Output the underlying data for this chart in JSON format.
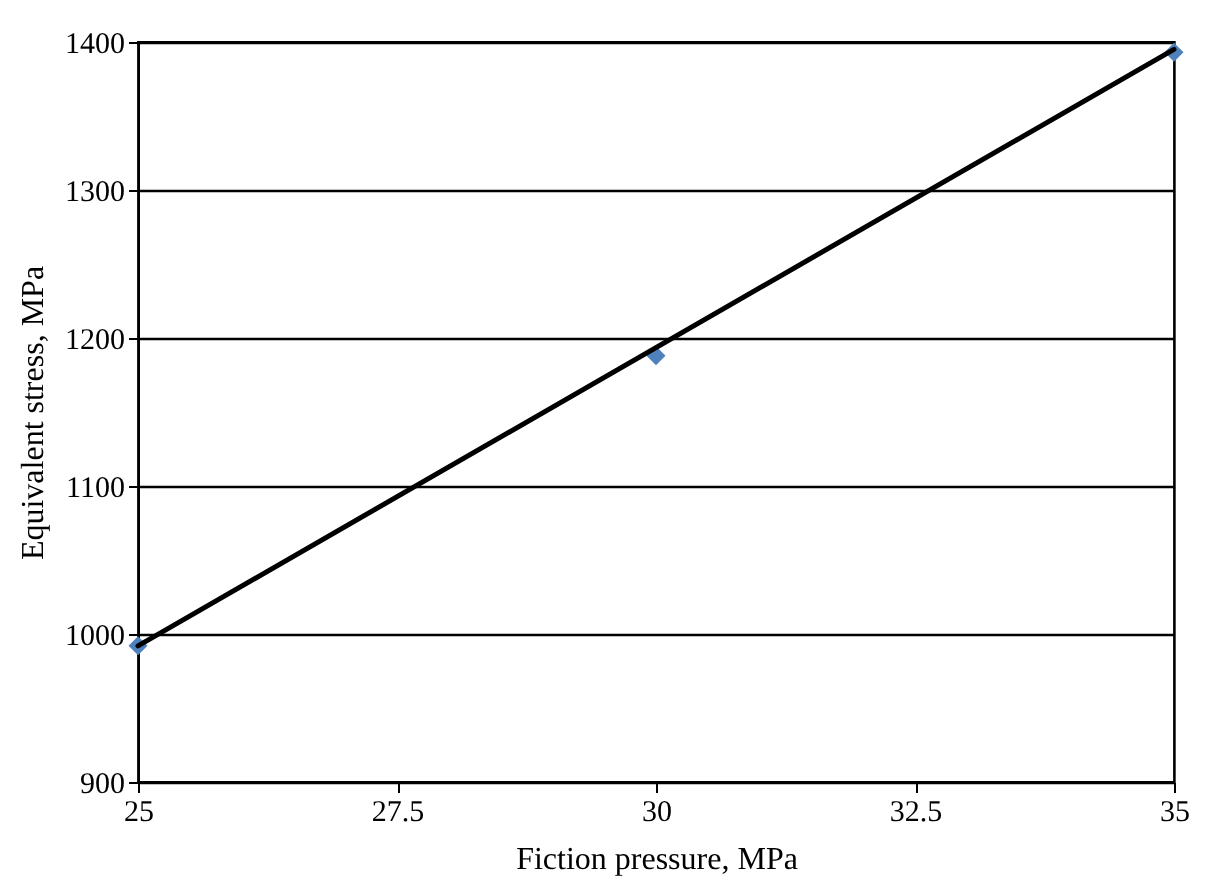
{
  "chart_data": {
    "type": "scatter",
    "xlabel": "Fiction pressure, MPa",
    "ylabel": "Equivalent stress, MPa",
    "xlim": [
      25,
      35
    ],
    "ylim": [
      900,
      1400
    ],
    "xticks": [
      25,
      27.5,
      30,
      32.5,
      35
    ],
    "yticks": [
      900,
      1000,
      1100,
      1200,
      1300,
      1400
    ],
    "grid": "y",
    "series": [
      {
        "color": "#4f81bd",
        "marker": "diamond",
        "x": [
          25,
          30,
          35
        ],
        "values": [
          992,
          1188,
          1393
        ]
      },
      {
        "type": "line",
        "color": "#000000",
        "x": [
          25,
          35
        ],
        "values": [
          992,
          1395
        ]
      }
    ]
  }
}
